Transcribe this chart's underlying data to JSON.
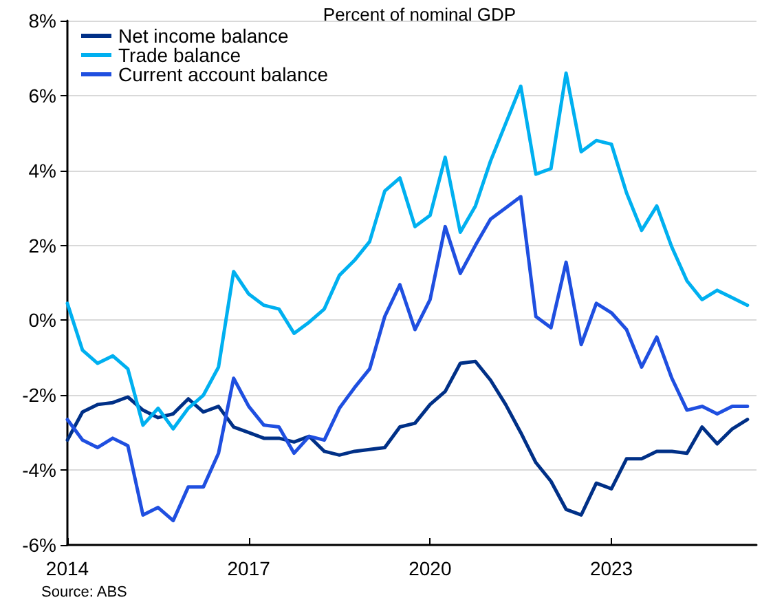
{
  "chart_data": {
    "type": "line",
    "title": "Percent of nominal GDP",
    "annotations": [
      "Source: ABS"
    ],
    "x": [
      2014,
      2014.25,
      2014.5,
      2014.75,
      2015,
      2015.25,
      2015.5,
      2015.75,
      2016,
      2016.25,
      2016.5,
      2016.75,
      2017,
      2017.25,
      2017.5,
      2017.75,
      2018,
      2018.25,
      2018.5,
      2018.75,
      2019,
      2019.25,
      2019.5,
      2019.75,
      2020,
      2020.25,
      2020.5,
      2020.75,
      2021,
      2021.25,
      2021.5,
      2021.75,
      2022,
      2022.25,
      2022.5,
      2022.75,
      2023,
      2023.25,
      2023.5,
      2023.75,
      2024,
      2024.25,
      2024.5,
      2024.75,
      2025,
      2025.25
    ],
    "series": [
      {
        "name": "Net income balance",
        "color": "#003087",
        "values": [
          -3.2,
          -2.45,
          -2.25,
          -2.2,
          -2.05,
          -2.4,
          -2.6,
          -2.5,
          -2.1,
          -2.45,
          -2.3,
          -2.85,
          -3.0,
          -3.15,
          -3.15,
          -3.25,
          -3.1,
          -3.5,
          -3.6,
          -3.5,
          -3.45,
          -3.4,
          -2.85,
          -2.75,
          -2.25,
          -1.9,
          -1.15,
          -1.1,
          -1.6,
          -2.25,
          -3.0,
          -3.8,
          -4.3,
          -5.05,
          -5.2,
          -4.35,
          -4.5,
          -3.7,
          -3.7,
          -3.5,
          -3.5,
          -3.55,
          -2.85,
          -3.3,
          -2.9,
          -2.65
        ]
      },
      {
        "name": "Trade balance",
        "color": "#00b0f0",
        "values": [
          0.45,
          -0.8,
          -1.15,
          -0.95,
          -1.3,
          -2.8,
          -2.35,
          -2.9,
          -2.35,
          -2.0,
          -1.25,
          1.3,
          0.7,
          0.4,
          0.3,
          -0.35,
          -0.05,
          0.3,
          1.2,
          1.6,
          2.1,
          3.45,
          3.8,
          2.5,
          2.8,
          4.35,
          2.35,
          3.05,
          4.25,
          5.25,
          6.25,
          3.9,
          4.05,
          6.6,
          4.5,
          4.8,
          4.7,
          3.4,
          2.4,
          3.05,
          1.95,
          1.05,
          0.55,
          0.8,
          0.6,
          0.4
        ]
      },
      {
        "name": "Current account balance",
        "color": "#1f4fe0",
        "values": [
          -2.65,
          -3.2,
          -3.4,
          -3.15,
          -3.35,
          -5.2,
          -5.0,
          -5.35,
          -4.45,
          -4.45,
          -3.55,
          -1.55,
          -2.3,
          -2.8,
          -2.85,
          -3.55,
          -3.1,
          -3.2,
          -2.35,
          -1.8,
          -1.3,
          0.1,
          0.95,
          -0.25,
          0.55,
          2.5,
          1.25,
          2.0,
          2.7,
          3.0,
          3.3,
          0.1,
          -0.2,
          1.55,
          -0.65,
          0.45,
          0.2,
          -0.25,
          -1.25,
          -0.45,
          -1.55,
          -2.4,
          -2.3,
          -2.5,
          -2.3,
          -2.3
        ]
      }
    ],
    "xlim": [
      2014,
      2025.4
    ],
    "xticks": [
      2014,
      2017,
      2020,
      2023
    ],
    "ylim": [
      -6,
      8
    ],
    "yticks": [
      {
        "value": -6,
        "label": "-6%"
      },
      {
        "value": -4,
        "label": "-4%"
      },
      {
        "value": -2,
        "label": "-2%"
      },
      {
        "value": 0,
        "label": "0%"
      },
      {
        "value": 2,
        "label": "2%"
      },
      {
        "value": 4,
        "label": "4%"
      },
      {
        "value": 6,
        "label": "6%"
      },
      {
        "value": 8,
        "label": "8%"
      }
    ],
    "grid": "y",
    "legend": "top left",
    "marker": "none",
    "line_style": "solid"
  }
}
